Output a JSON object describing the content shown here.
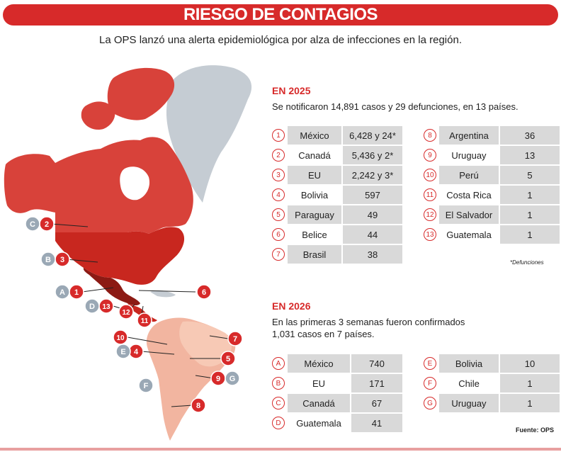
{
  "header": {
    "title": "RIESGO DE CONTAGIOS",
    "subtitle": "La OPS lanzó una alerta epidemiológica por alza de infecciones en la región."
  },
  "section_2025": {
    "year": "EN 2025",
    "description": "Se notificaron 14,891 casos y 29 defunciones, en 13 países.",
    "left": [
      {
        "n": "1",
        "country": "México",
        "value": "6,428 y 24*"
      },
      {
        "n": "2",
        "country": "Canadá",
        "value": "5,436 y 2*"
      },
      {
        "n": "3",
        "country": "EU",
        "value": "2,242 y 3*"
      },
      {
        "n": "4",
        "country": "Bolivia",
        "value": "597"
      },
      {
        "n": "5",
        "country": "Paraguay",
        "value": "49"
      },
      {
        "n": "6",
        "country": "Belice",
        "value": "44"
      },
      {
        "n": "7",
        "country": "Brasil",
        "value": "38"
      }
    ],
    "right": [
      {
        "n": "8",
        "country": "Argentina",
        "value": "36"
      },
      {
        "n": "9",
        "country": "Uruguay",
        "value": "13"
      },
      {
        "n": "10",
        "country": "Perú",
        "value": "5"
      },
      {
        "n": "11",
        "country": "Costa Rica",
        "value": "1"
      },
      {
        "n": "12",
        "country": "El Salvador",
        "value": "1"
      },
      {
        "n": "13",
        "country": "Guatemala",
        "value": "1"
      }
    ],
    "note": "*Defunciones"
  },
  "section_2026": {
    "year": "EN 2026",
    "description_line1": "En las primeras 3 semanas fueron confirmados",
    "description_line2": "1,031 casos en 7 países.",
    "left": [
      {
        "n": "A",
        "country": "México",
        "value": "740"
      },
      {
        "n": "B",
        "country": "EU",
        "value": "171"
      },
      {
        "n": "C",
        "country": "Canadá",
        "value": "67"
      },
      {
        "n": "D",
        "country": "Guatemala",
        "value": "41"
      }
    ],
    "right": [
      {
        "n": "E",
        "country": "Bolivia",
        "value": "10"
      },
      {
        "n": "F",
        "country": "Chile",
        "value": "1"
      },
      {
        "n": "G",
        "country": "Uruguay",
        "value": "1"
      }
    ]
  },
  "source": "Fuente: OPS",
  "map_markers": {
    "red": [
      "2",
      "3",
      "1",
      "6",
      "13",
      "12",
      "11",
      "10",
      "7",
      "4",
      "5",
      "9",
      "8"
    ],
    "gray": [
      "C",
      "B",
      "A",
      "D",
      "E",
      "F",
      "G"
    ]
  },
  "colors": {
    "accent": "#d72a2a",
    "canada": "#d8423a",
    "usa": "#c8271f",
    "mexico": "#8c1a14",
    "south_america": "#f2b5a0",
    "greenland": "#c5ccd3",
    "gray_marker": "#9aa8b5"
  }
}
